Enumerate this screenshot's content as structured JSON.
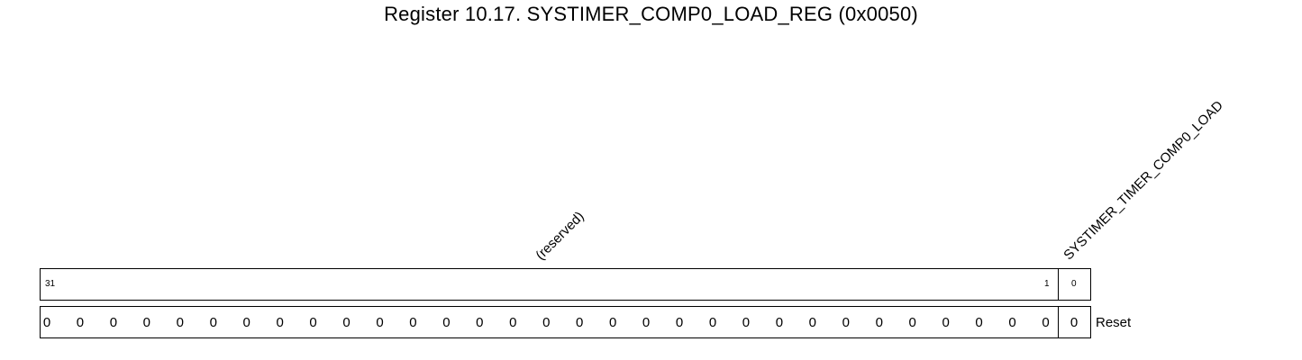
{
  "title": "Register 10.17. SYSTIMER_COMP0_LOAD_REG (0x0050)",
  "fields": [
    {
      "name": "(reserved)",
      "msb": 31,
      "lsb": 1,
      "msb_label": "31",
      "lsb_label": "1"
    },
    {
      "name": "SYSTIMER_TIMER_COMP0_LOAD",
      "msb": 0,
      "lsb": 0,
      "bit_label": "0"
    }
  ],
  "reset_values": [
    "0",
    "0",
    "0",
    "0",
    "0",
    "0",
    "0",
    "0",
    "0",
    "0",
    "0",
    "0",
    "0",
    "0",
    "0",
    "0",
    "0",
    "0",
    "0",
    "0",
    "0",
    "0",
    "0",
    "0",
    "0",
    "0",
    "0",
    "0",
    "0",
    "0",
    "0",
    "0"
  ],
  "reset_label": "Reset"
}
